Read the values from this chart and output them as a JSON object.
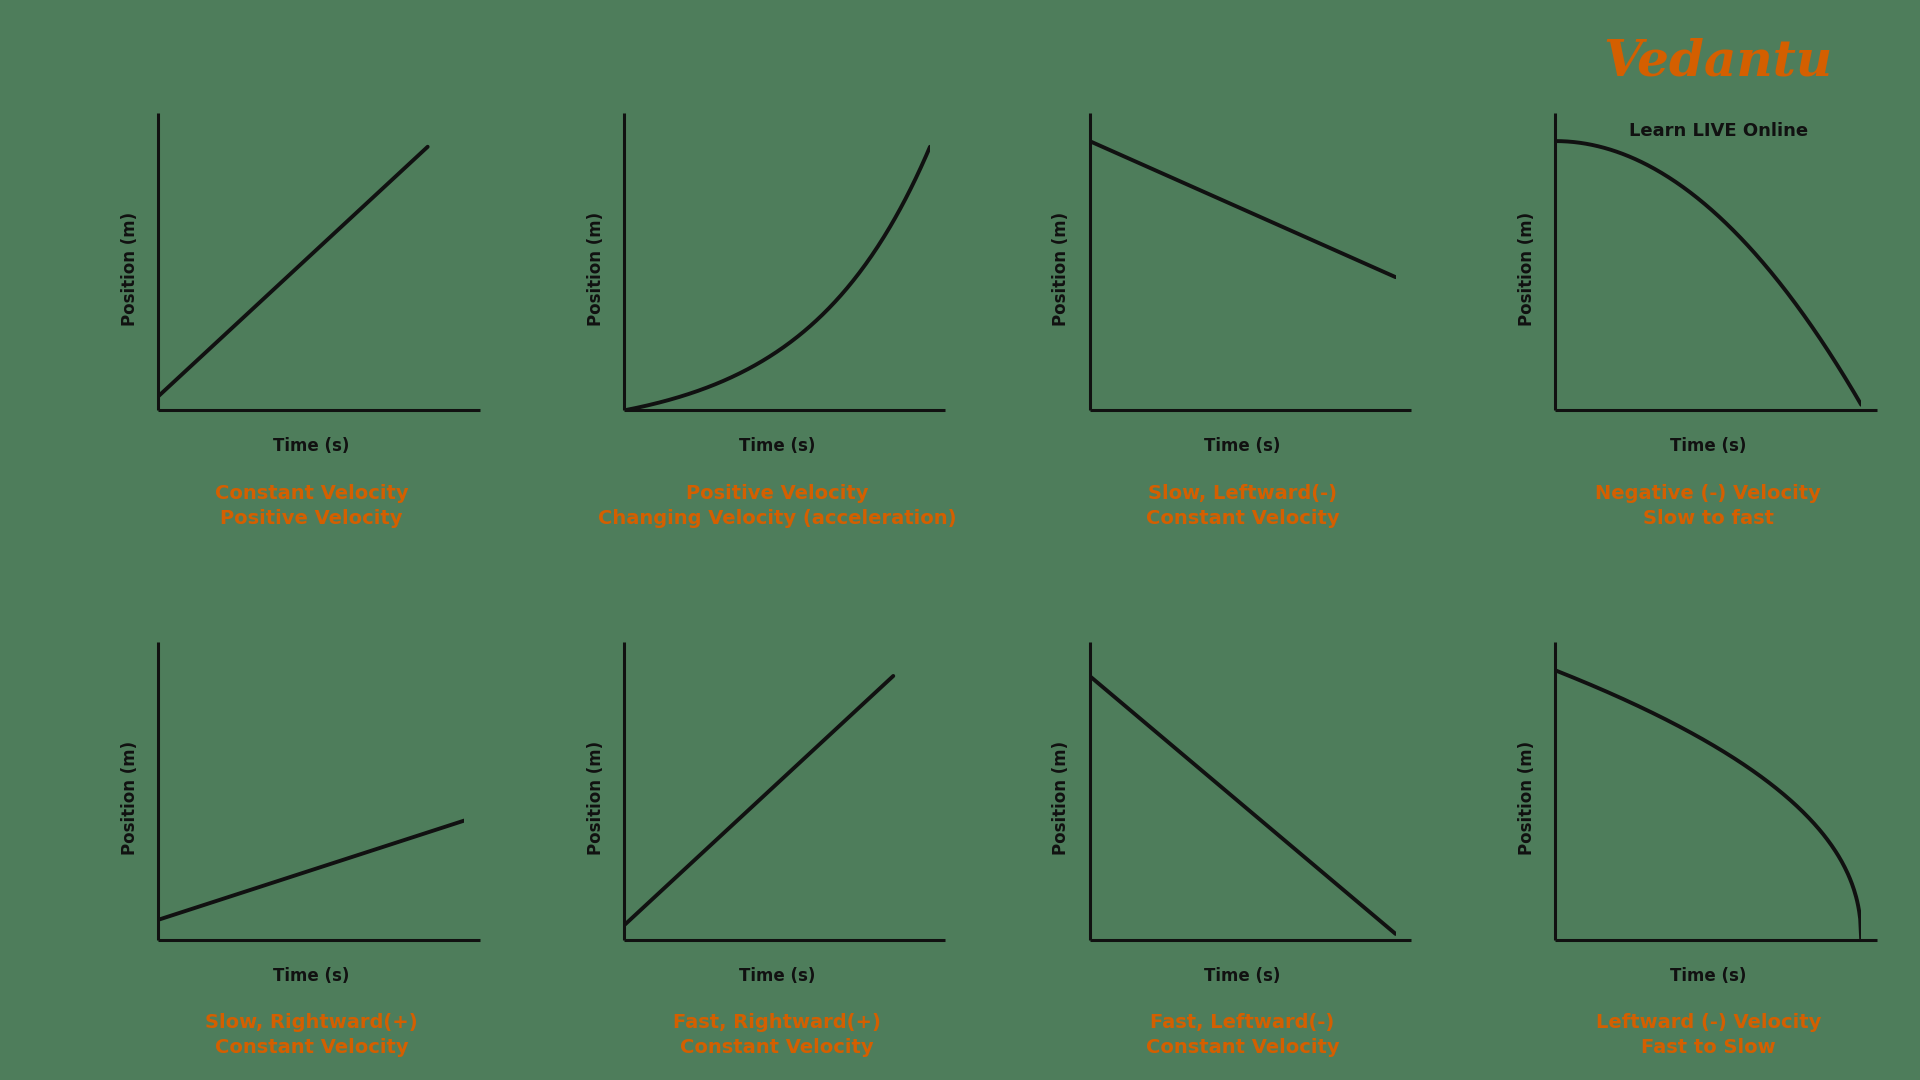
{
  "background_color": "#4e7d5b",
  "line_color": "#111111",
  "label_color": "#d45f00",
  "plots": [
    {
      "row": 0,
      "col": 0,
      "type": "linear_positive",
      "title_line1": "Constant Velocity",
      "title_line2": "Positive Velocity"
    },
    {
      "row": 0,
      "col": 1,
      "type": "exponential_positive",
      "title_line1": "Positive Velocity",
      "title_line2": "Changing Velocity (acceleration)"
    },
    {
      "row": 0,
      "col": 2,
      "type": "linear_negative_slow",
      "title_line1": "Slow, Leftward(-)",
      "title_line2": "Constant Velocity"
    },
    {
      "row": 0,
      "col": 3,
      "type": "concave_down_fast",
      "title_line1": "Negative (-) Velocity",
      "title_line2": "Slow to fast"
    },
    {
      "row": 1,
      "col": 0,
      "type": "linear_slow_positive",
      "title_line1": "Slow, Rightward(+)",
      "title_line2": "Constant Velocity"
    },
    {
      "row": 1,
      "col": 1,
      "type": "linear_fast_positive",
      "title_line1": "Fast, Rightward(+)",
      "title_line2": "Constant Velocity"
    },
    {
      "row": 1,
      "col": 2,
      "type": "linear_fast_negative",
      "title_line1": "Fast, Leftward(-)",
      "title_line2": "Constant Velocity"
    },
    {
      "row": 1,
      "col": 3,
      "type": "concave_up_neg_fast_slow",
      "title_line1": "Leftward (-) Velocity",
      "title_line2": "Fast to Slow"
    }
  ],
  "xlabel": "Time (s)",
  "ylabel": "Position (m)",
  "curve_lw": 2.8,
  "axis_lw": 2.2,
  "axis_label_fontsize": 12,
  "title_fontsize": 14,
  "vedantu_text": "Vedantu",
  "vedantu_sub": "Learn LIVE Online",
  "vedantu_color": "#d45f00",
  "vedantu_sub_color": "#111111",
  "vedantu_fontsize": 36,
  "vedantu_sub_fontsize": 13
}
